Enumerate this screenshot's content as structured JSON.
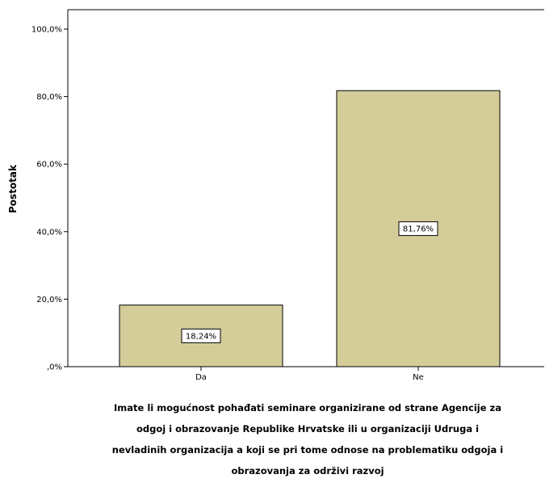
{
  "chart_data": {
    "type": "bar",
    "categories": [
      "Da",
      "Ne"
    ],
    "values": [
      18.24,
      81.76
    ],
    "data_labels": [
      "18,24%",
      "81,76%"
    ],
    "ylabel": "Postotak",
    "xlabel": "Imate li mogućnost pohađati seminare organizirane od strane Agencije za odgoj i obrazovanje Republike Hrvatske ili u organizaciji Udruga i nevladinih organizacija a koji se pri tome odnose na problematiku odgoja i obrazovanja za održivi razvoj",
    "xlabel_lines": [
      "Imate li mogućnost pohađati seminare organizirane od strane Agencije za",
      "odgoj i obrazovanje Republike Hrvatske ili u organizaciji Udruga i",
      "nevladinih organizacija a koji se pri tome odnose na problematiku odgoja i",
      "obrazovanja za održivi razvoj"
    ],
    "yticks": [
      0,
      20,
      40,
      60,
      80,
      100
    ],
    "ytick_labels": [
      ",0%",
      "20,0%",
      "40,0%",
      "60,0%",
      "80,0%",
      "100,0%"
    ],
    "ylim": [
      0,
      100
    ],
    "grid": false,
    "legend": "none",
    "colors": {
      "bar_fill": "#d4cd9a",
      "bar_stroke": "#000000",
      "background": "#ffffff"
    }
  }
}
